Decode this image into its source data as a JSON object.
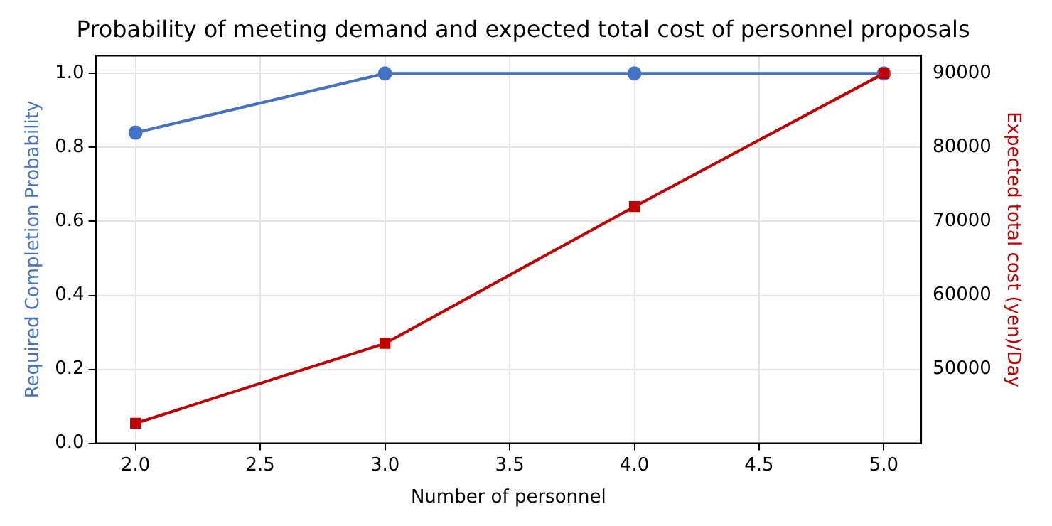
{
  "chart_data": {
    "type": "line",
    "title": "Probability of meeting demand and expected total cost of personnel proposals",
    "xlabel": "Number of personnel",
    "ylabel": "Required Completion Probability",
    "y2label": "Expected total cost (yen)/Day",
    "x": [
      2,
      3,
      4,
      5
    ],
    "series": [
      {
        "color": "#4472c4",
        "marker": "circle",
        "values": [
          0.84,
          1.0,
          1.0,
          1.0
        ]
      },
      {
        "color": "#c00000",
        "marker": "square",
        "axis": "y2",
        "values": [
          42700,
          53500,
          72000,
          90000
        ]
      }
    ],
    "xlim": [
      1.84,
      5.15
    ],
    "xticks": [
      {
        "value": 2,
        "label": "2.0"
      },
      2.5,
      {
        "value": 3,
        "label": "3.0"
      },
      3.5,
      {
        "value": 4,
        "label": "4.0"
      },
      4.5,
      {
        "value": 5,
        "label": "5.0"
      }
    ],
    "ylim": [
      0,
      1.048
    ],
    "yticks": [
      {
        "value": 0,
        "label": "0.0"
      },
      0.2,
      0.4,
      0.6,
      0.8,
      {
        "value": 1,
        "label": "1.0"
      }
    ],
    "y2lim": [
      40000,
      92400
    ],
    "y2ticks": [
      50000,
      60000,
      70000,
      80000,
      90000
    ],
    "grid": true,
    "legend": false
  }
}
